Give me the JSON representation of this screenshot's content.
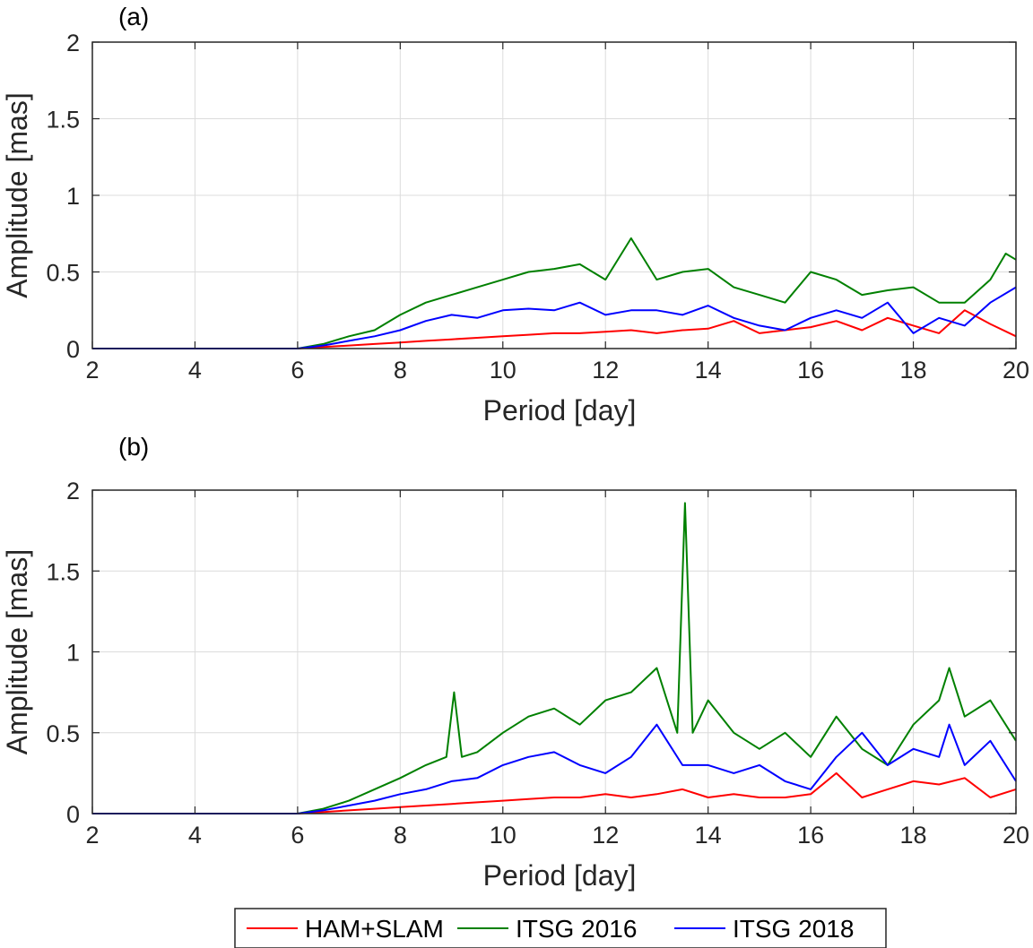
{
  "legend": [
    {
      "label": "HAM+SLAM",
      "color": "#ff0000"
    },
    {
      "label": "ITSG 2016",
      "color": "#008000"
    },
    {
      "label": "ITSG 2018",
      "color": "#0000ff"
    }
  ],
  "chart_data": [
    {
      "type": "line",
      "panel_label": "(a)",
      "xlabel": "Period [day]",
      "ylabel": "Amplitude [mas]",
      "xlim": [
        2,
        20
      ],
      "ylim": [
        0,
        2
      ],
      "xticks": [
        2,
        4,
        6,
        8,
        10,
        12,
        14,
        16,
        18,
        20
      ],
      "yticks": [
        0,
        0.5,
        1,
        1.5,
        2
      ],
      "ytick_labels": [
        "0",
        "0.5",
        "1",
        "1.5",
        "2"
      ],
      "grid": true,
      "series": [
        {
          "name": "HAM+SLAM",
          "color": "#ff0000",
          "x": [
            2,
            6,
            6.5,
            7,
            7.5,
            8,
            8.5,
            9,
            9.5,
            10,
            10.5,
            11,
            11.5,
            12,
            12.5,
            13,
            13.5,
            14,
            14.5,
            15,
            15.5,
            16,
            16.5,
            17,
            17.5,
            18,
            18.5,
            19,
            19.5,
            20
          ],
          "y": [
            0,
            0,
            0.01,
            0.02,
            0.03,
            0.04,
            0.05,
            0.06,
            0.07,
            0.08,
            0.09,
            0.1,
            0.1,
            0.11,
            0.12,
            0.1,
            0.12,
            0.13,
            0.18,
            0.1,
            0.12,
            0.14,
            0.18,
            0.12,
            0.2,
            0.15,
            0.1,
            0.25,
            0.16,
            0.08
          ]
        },
        {
          "name": "ITSG 2016",
          "color": "#008000",
          "x": [
            2,
            6,
            6.5,
            7,
            7.5,
            8,
            8.5,
            9,
            9.5,
            10,
            10.5,
            11,
            11.5,
            12,
            12.5,
            13,
            13.5,
            14,
            14.5,
            15,
            15.5,
            16,
            16.5,
            17,
            17.5,
            18,
            18.5,
            19,
            19.5,
            19.8,
            20
          ],
          "y": [
            0,
            0,
            0.03,
            0.08,
            0.12,
            0.22,
            0.3,
            0.35,
            0.4,
            0.45,
            0.5,
            0.52,
            0.55,
            0.45,
            0.72,
            0.45,
            0.5,
            0.52,
            0.4,
            0.35,
            0.3,
            0.5,
            0.45,
            0.35,
            0.38,
            0.4,
            0.3,
            0.3,
            0.45,
            0.62,
            0.58
          ]
        },
        {
          "name": "ITSG 2018",
          "color": "#0000ff",
          "x": [
            2,
            6,
            6.5,
            7,
            7.5,
            8,
            8.5,
            9,
            9.5,
            10,
            10.5,
            11,
            11.5,
            12,
            12.5,
            13,
            13.5,
            14,
            14.5,
            15,
            15.5,
            16,
            16.5,
            17,
            17.5,
            18,
            18.5,
            19,
            19.5,
            20
          ],
          "y": [
            0,
            0,
            0.02,
            0.05,
            0.08,
            0.12,
            0.18,
            0.22,
            0.2,
            0.25,
            0.26,
            0.25,
            0.3,
            0.22,
            0.25,
            0.25,
            0.22,
            0.28,
            0.2,
            0.15,
            0.12,
            0.2,
            0.25,
            0.2,
            0.3,
            0.1,
            0.2,
            0.15,
            0.3,
            0.4
          ]
        }
      ]
    },
    {
      "type": "line",
      "panel_label": "(b)",
      "xlabel": "Period [day]",
      "ylabel": "Amplitude [mas]",
      "xlim": [
        2,
        20
      ],
      "ylim": [
        0,
        2
      ],
      "xticks": [
        2,
        4,
        6,
        8,
        10,
        12,
        14,
        16,
        18,
        20
      ],
      "yticks": [
        0,
        0.5,
        1,
        1.5,
        2
      ],
      "ytick_labels": [
        "0",
        "0.5",
        "1",
        "1.5",
        "2"
      ],
      "grid": true,
      "series": [
        {
          "name": "HAM+SLAM",
          "color": "#ff0000",
          "x": [
            2,
            6,
            6.5,
            7,
            7.5,
            8,
            8.5,
            9,
            9.5,
            10,
            10.5,
            11,
            11.5,
            12,
            12.5,
            13,
            13.5,
            14,
            14.5,
            15,
            15.5,
            16,
            16.5,
            17,
            17.5,
            18,
            18.5,
            19,
            19.5,
            20
          ],
          "y": [
            0,
            0,
            0.01,
            0.02,
            0.03,
            0.04,
            0.05,
            0.06,
            0.07,
            0.08,
            0.09,
            0.1,
            0.1,
            0.12,
            0.1,
            0.12,
            0.15,
            0.1,
            0.12,
            0.1,
            0.1,
            0.12,
            0.25,
            0.1,
            0.15,
            0.2,
            0.18,
            0.22,
            0.1,
            0.15
          ]
        },
        {
          "name": "ITSG 2016",
          "color": "#008000",
          "x": [
            2,
            6,
            6.5,
            7,
            7.5,
            8,
            8.5,
            8.9,
            9.05,
            9.2,
            9.5,
            10,
            10.5,
            11,
            11.5,
            12,
            12.5,
            13,
            13.4,
            13.55,
            13.7,
            14,
            14.5,
            15,
            15.5,
            16,
            16.5,
            17,
            17.5,
            18,
            18.5,
            18.7,
            19,
            19.5,
            20
          ],
          "y": [
            0,
            0,
            0.03,
            0.08,
            0.15,
            0.22,
            0.3,
            0.35,
            0.75,
            0.35,
            0.38,
            0.5,
            0.6,
            0.65,
            0.55,
            0.7,
            0.75,
            0.9,
            0.5,
            1.92,
            0.5,
            0.7,
            0.5,
            0.4,
            0.5,
            0.35,
            0.6,
            0.4,
            0.3,
            0.55,
            0.7,
            0.9,
            0.6,
            0.7,
            0.45
          ]
        },
        {
          "name": "ITSG 2018",
          "color": "#0000ff",
          "x": [
            2,
            6,
            6.5,
            7,
            7.5,
            8,
            8.5,
            9,
            9.5,
            10,
            10.5,
            11,
            11.5,
            12,
            12.5,
            13,
            13.5,
            14,
            14.5,
            15,
            15.5,
            16,
            16.5,
            17,
            17.5,
            18,
            18.5,
            18.7,
            19,
            19.5,
            20
          ],
          "y": [
            0,
            0,
            0.02,
            0.05,
            0.08,
            0.12,
            0.15,
            0.2,
            0.22,
            0.3,
            0.35,
            0.38,
            0.3,
            0.25,
            0.35,
            0.55,
            0.3,
            0.3,
            0.25,
            0.3,
            0.2,
            0.15,
            0.35,
            0.5,
            0.3,
            0.4,
            0.35,
            0.55,
            0.3,
            0.45,
            0.2
          ]
        }
      ]
    }
  ]
}
